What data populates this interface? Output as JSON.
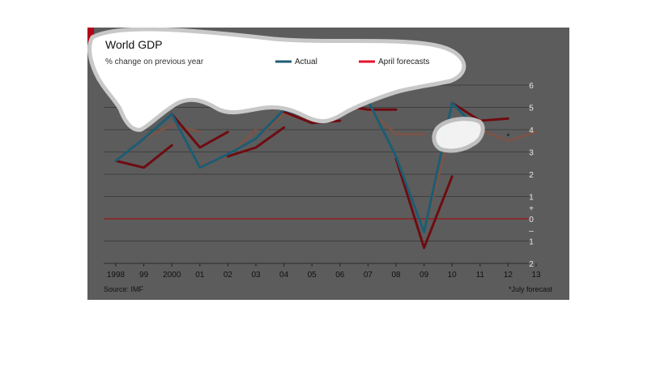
{
  "chart_data": {
    "type": "line",
    "title": "World GDP",
    "subtitle": "% change on previous year",
    "source": "Source: IMF",
    "footnote": "*July forecast",
    "asterisk": "*",
    "legend": [
      {
        "label": "Actual",
        "color": "#1c5d74"
      },
      {
        "label": "April forecasts",
        "color": "#e8102d"
      }
    ],
    "x_labels": [
      "1998",
      "99",
      "2000",
      "01",
      "02",
      "03",
      "04",
      "05",
      "06",
      "07",
      "08",
      "09",
      "10",
      "11",
      "12",
      "13"
    ],
    "y_tick_labels": [
      "6",
      "5",
      "4",
      "3",
      "2",
      "1",
      "+",
      "0",
      "–",
      "1",
      "2"
    ],
    "ylim": [
      -2,
      6
    ],
    "colors": {
      "background": "#5c5c5c",
      "grid": "#3f3f3f",
      "zero_line": "#9a1414",
      "actual": "#1c5d74",
      "forecast_light": "#7a5448",
      "forecast_dark": "#6e0c12",
      "legend_forecast": "#e8102d"
    },
    "series": [
      {
        "name": "Actual",
        "style": "actual",
        "x": [
          0,
          1,
          2,
          3,
          4,
          5,
          6,
          7,
          8,
          9,
          10,
          11,
          12,
          13
        ],
        "y": [
          2.6,
          3.6,
          4.7,
          2.3,
          2.9,
          3.6,
          4.9,
          4.5,
          5.2,
          5.3,
          2.8,
          -0.6,
          5.2,
          3.9
        ]
      },
      {
        "style": "light",
        "x": [
          1,
          2,
          3
        ],
        "y": [
          3.6,
          4.2,
          3.9
        ]
      },
      {
        "style": "light",
        "x": [
          3,
          4,
          5
        ],
        "y": [
          2.4,
          2.8,
          4.0
        ]
      },
      {
        "style": "light",
        "x": [
          5,
          6,
          7
        ],
        "y": [
          3.6,
          4.7,
          4.4
        ]
      },
      {
        "style": "light",
        "x": [
          7,
          8,
          9
        ],
        "y": [
          4.4,
          5.0,
          4.9
        ]
      },
      {
        "style": "light",
        "x": [
          9,
          10,
          11
        ],
        "y": [
          4.9,
          3.8,
          3.8
        ]
      },
      {
        "style": "light",
        "x": [
          11,
          12,
          13
        ],
        "y": [
          -0.5,
          4.2,
          4.3
        ]
      },
      {
        "style": "light",
        "x": [
          13,
          14,
          15
        ],
        "y": [
          4.0,
          3.5,
          3.9
        ]
      },
      {
        "style": "dark",
        "x": [
          0,
          1,
          2
        ],
        "y": [
          2.6,
          2.3,
          3.3
        ]
      },
      {
        "style": "dark",
        "x": [
          2,
          3,
          4
        ],
        "y": [
          4.7,
          3.2,
          3.9
        ]
      },
      {
        "style": "dark",
        "x": [
          4,
          5,
          6
        ],
        "y": [
          2.8,
          3.2,
          4.1
        ]
      },
      {
        "style": "dark",
        "x": [
          6,
          7,
          8
        ],
        "y": [
          4.8,
          4.3,
          4.4
        ]
      },
      {
        "style": "dark",
        "x": [
          8,
          9,
          10
        ],
        "y": [
          5.1,
          4.9,
          4.9
        ]
      },
      {
        "style": "dark",
        "x": [
          10,
          11,
          12
        ],
        "y": [
          2.7,
          -1.3,
          1.9
        ]
      },
      {
        "style": "dark",
        "x": [
          12,
          13,
          14
        ],
        "y": [
          5.2,
          4.4,
          4.5
        ]
      }
    ]
  }
}
